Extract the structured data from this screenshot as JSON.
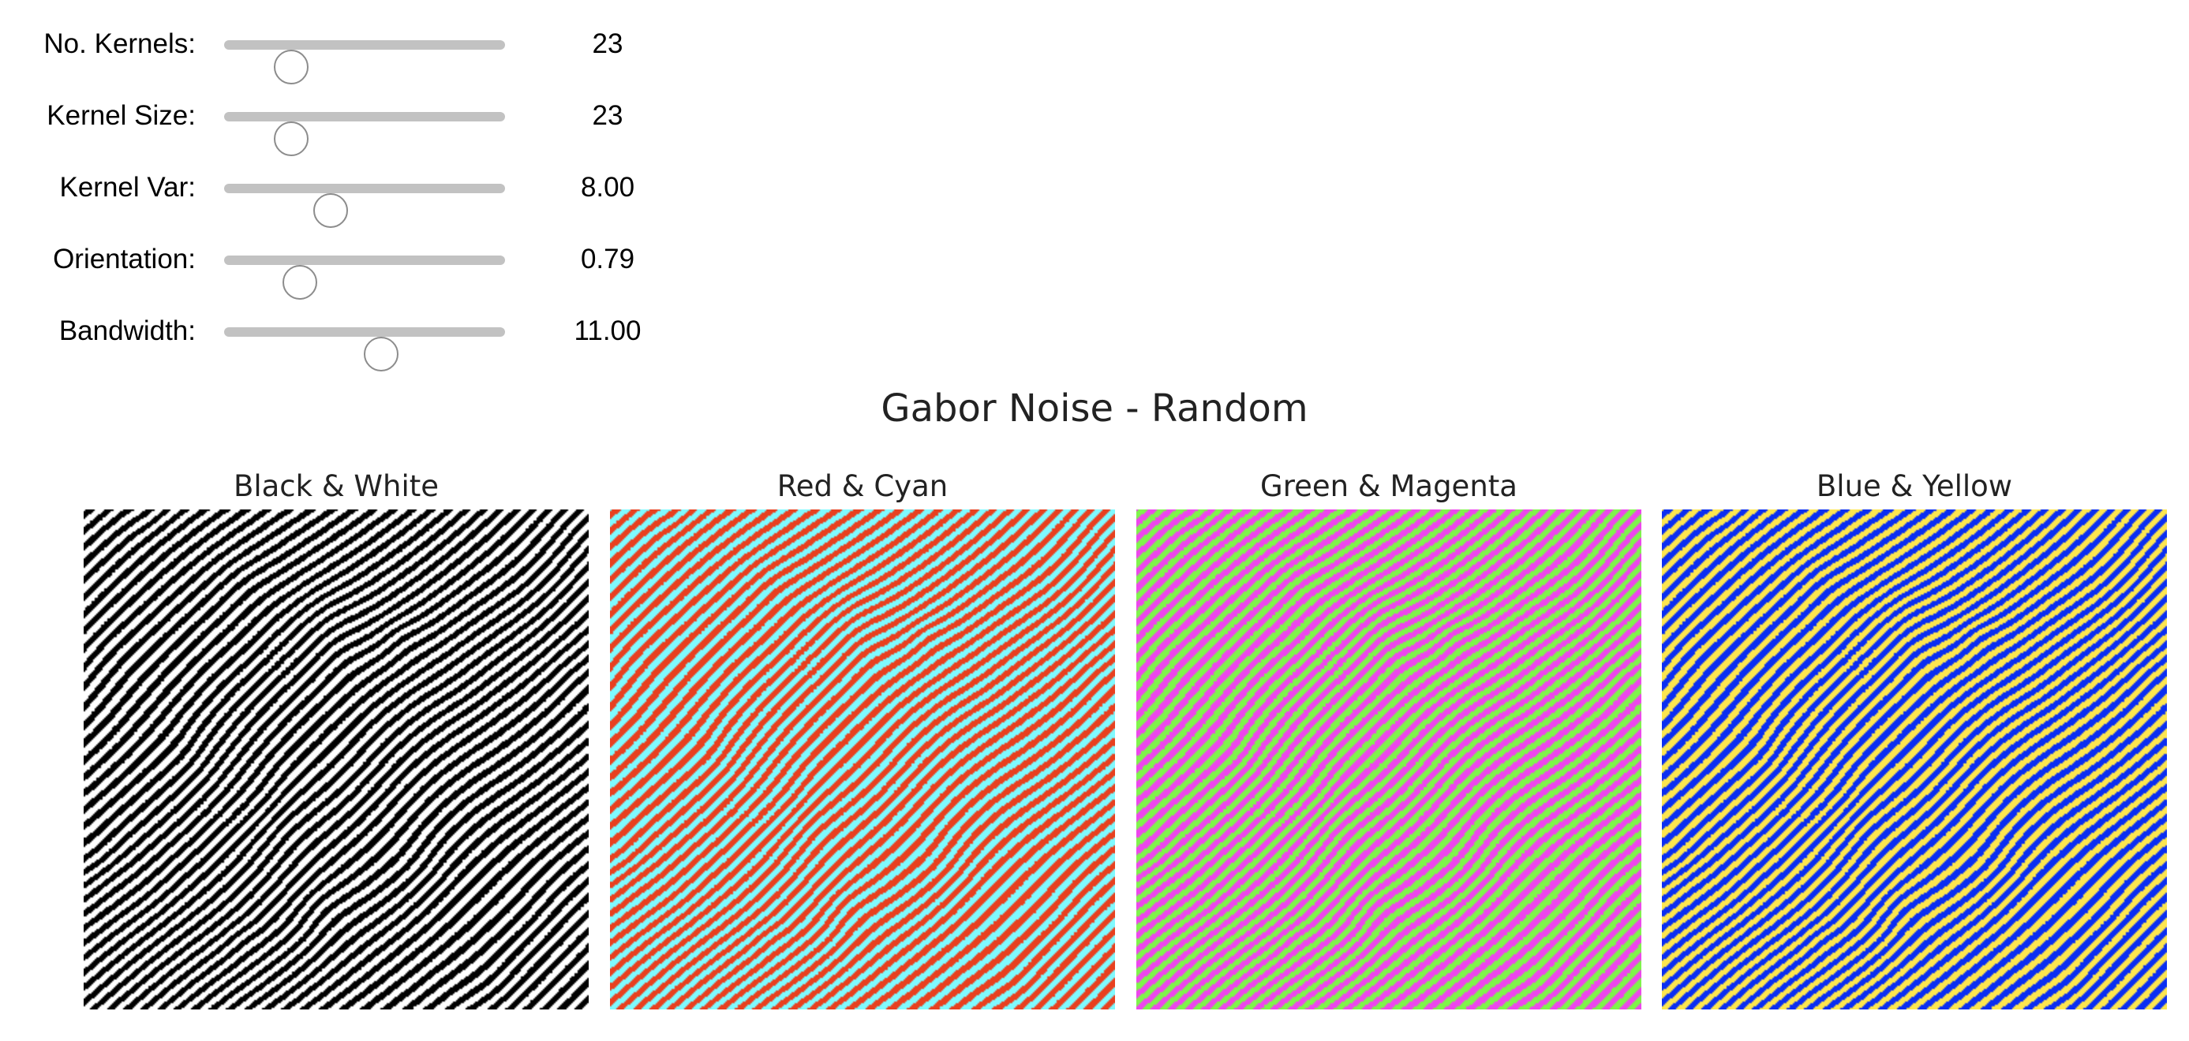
{
  "sliders": [
    {
      "label": "No. Kernels:",
      "value": "23",
      "fraction": 0.24
    },
    {
      "label": "Kernel Size:",
      "value": "23",
      "fraction": 0.24
    },
    {
      "label": "Kernel Var:",
      "value": "8.00",
      "fraction": 0.38
    },
    {
      "label": "Orientation:",
      "value": "0.79",
      "fraction": 0.27
    },
    {
      "label": "Bandwidth:",
      "value": "11.00",
      "fraction": 0.56
    }
  ],
  "figure": {
    "title": "Gabor Noise - Random",
    "panels": [
      {
        "title": "Black & White",
        "color_a": "#000000",
        "color_b": "#ffffff"
      },
      {
        "title": "Red & Cyan",
        "color_a": "#e8401f",
        "color_b": "#7ffaff"
      },
      {
        "title": "Green & Magenta",
        "color_a": "#7ef54a",
        "color_b": "#ee45ee"
      },
      {
        "title": "Blue & Yellow",
        "color_a": "#0a2ef2",
        "color_b": "#fde64f"
      }
    ]
  }
}
